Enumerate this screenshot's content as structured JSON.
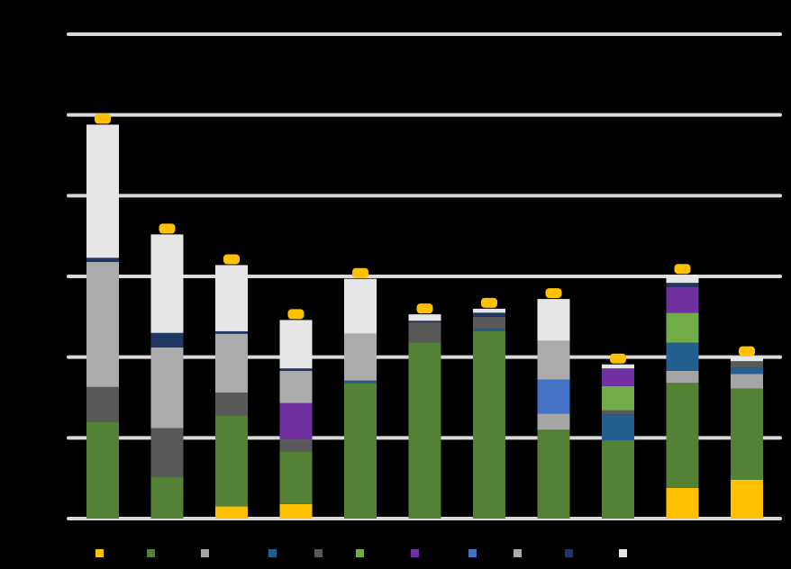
{
  "chart_data": {
    "type": "bar",
    "stacked": true,
    "title": "",
    "xlabel": "",
    "ylabel": "",
    "ylim": [
      0,
      6
    ],
    "grid": true,
    "legend_placement": "bottom",
    "categories": [
      "",
      "",
      "",
      "",
      "",
      "",
      "",
      "",
      "",
      "",
      ""
    ],
    "series": [
      {
        "color": "#FFC000",
        "values": [
          0.0,
          0.0,
          0.15,
          0.18,
          0.0,
          0.0,
          0.0,
          0.0,
          0.0,
          0.38,
          0.48
        ]
      },
      {
        "color": "#538135",
        "values": [
          1.2,
          0.52,
          1.13,
          0.65,
          1.68,
          2.18,
          2.32,
          1.1,
          0.97,
          1.3,
          1.13
        ]
      },
      {
        "color": "#A5A5A5",
        "values": [
          0.0,
          0.0,
          0.0,
          0.0,
          0.0,
          0.0,
          0.0,
          0.2,
          0.0,
          0.15,
          0.18
        ]
      },
      {
        "color": "#255E91",
        "values": [
          0.0,
          0.0,
          0.0,
          0.0,
          0.03,
          0.0,
          0.03,
          0.0,
          0.32,
          0.35,
          0.08
        ]
      },
      {
        "color": "#595959",
        "values": [
          0.43,
          0.6,
          0.28,
          0.15,
          0.0,
          0.25,
          0.15,
          0.0,
          0.05,
          0.0,
          0.08
        ]
      },
      {
        "color": "#70AD47",
        "values": [
          0.0,
          0.0,
          0.0,
          0.0,
          0.0,
          0.0,
          0.0,
          0.0,
          0.3,
          0.37,
          0.0
        ]
      },
      {
        "color": "#7030A0",
        "values": [
          0.0,
          0.0,
          0.0,
          0.45,
          0.0,
          0.0,
          0.0,
          0.0,
          0.22,
          0.32,
          0.0
        ]
      },
      {
        "color": "#4472C4",
        "values": [
          0.0,
          0.0,
          0.0,
          0.0,
          0.0,
          0.0,
          0.0,
          0.42,
          0.0,
          0.0,
          0.0
        ]
      },
      {
        "color": "#ABABAB",
        "values": [
          1.55,
          1.0,
          0.73,
          0.4,
          0.58,
          0.0,
          0.0,
          0.48,
          0.0,
          0.0,
          0.0
        ]
      },
      {
        "color": "#203864",
        "values": [
          0.05,
          0.18,
          0.03,
          0.03,
          0.0,
          0.02,
          0.05,
          0.0,
          0.0,
          0.05,
          0.0
        ]
      },
      {
        "color": "#E7E6E6",
        "values": [
          1.65,
          1.22,
          0.82,
          0.6,
          0.68,
          0.08,
          0.05,
          0.52,
          0.05,
          0.1,
          0.05
        ]
      }
    ],
    "errorbar_color": "#FFC000"
  }
}
